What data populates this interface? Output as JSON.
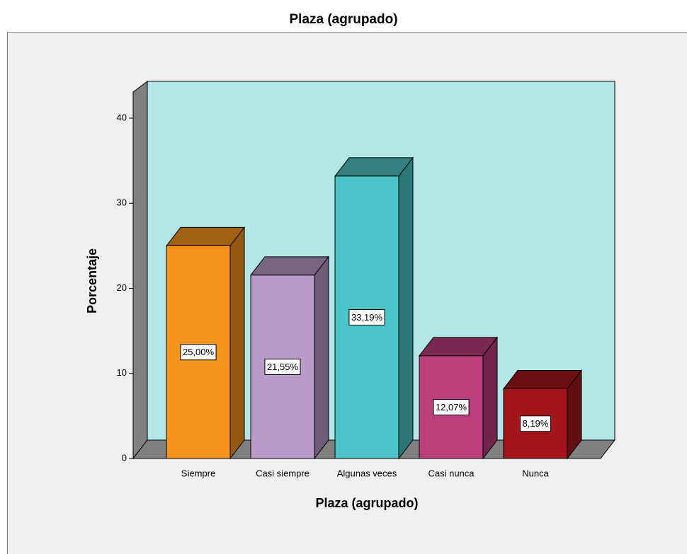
{
  "chart_data": {
    "type": "bar3d",
    "title": "Plaza (agrupado)",
    "x_label": "Plaza (agrupado)",
    "y_label": "Porcentaje",
    "categories": [
      "Siempre",
      "Casi siempre",
      "Algunas veces",
      "Casi nunca",
      "Nunca"
    ],
    "values": [
      25.0,
      21.55,
      33.19,
      12.07,
      8.19
    ],
    "value_labels": [
      "25,00%",
      "21,55%",
      "33,19%",
      "12,07%",
      "8,19%"
    ],
    "colors": [
      "#f7941d",
      "#b99ac9",
      "#4bc4c7",
      "#bd3e7c",
      "#a3151b"
    ],
    "ylim": [
      0,
      43
    ],
    "yticks": [
      0,
      10,
      20,
      30,
      40
    ]
  }
}
